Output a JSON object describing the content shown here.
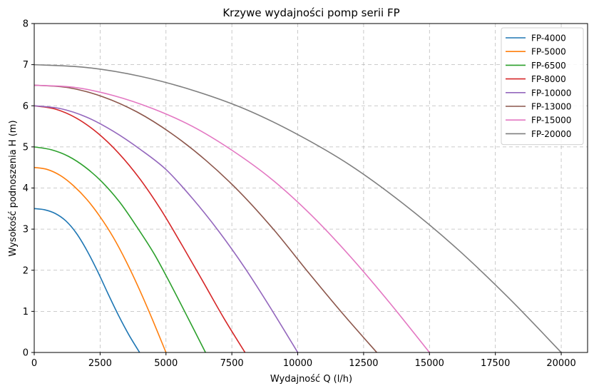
{
  "chart_data": {
    "type": "line",
    "title": "Krzywe wydajności pomp serii FP",
    "xlabel": "Wydajność Q (l/h)",
    "ylabel": "Wysokość podnoszenia H (m)",
    "xlim": [
      0,
      21000
    ],
    "ylim": [
      0,
      8
    ],
    "xticks": [
      0,
      2500,
      5000,
      7500,
      10000,
      12500,
      15000,
      17500,
      20000
    ],
    "yticks": [
      0,
      1,
      2,
      3,
      4,
      5,
      6,
      7,
      8
    ],
    "grid": true,
    "legend_position": "top-right",
    "series": [
      {
        "name": "FP-4000",
        "color": "#1f77b4",
        "x": [
          0,
          400,
          800,
          1200,
          1600,
          2000,
          2400,
          2800,
          3200,
          3600,
          4000
        ],
        "y": [
          3.5,
          3.47,
          3.38,
          3.2,
          2.9,
          2.48,
          1.98,
          1.43,
          0.9,
          0.42,
          0.0
        ]
      },
      {
        "name": "FP-5000",
        "color": "#ff7f0e",
        "x": [
          0,
          500,
          1000,
          1500,
          2000,
          2500,
          3000,
          3500,
          4000,
          4500,
          5000
        ],
        "y": [
          4.5,
          4.45,
          4.3,
          4.05,
          3.72,
          3.3,
          2.8,
          2.2,
          1.52,
          0.78,
          0.0
        ]
      },
      {
        "name": "FP-6500",
        "color": "#2ca02c",
        "x": [
          0,
          650,
          1300,
          1950,
          2600,
          3250,
          3900,
          4550,
          5200,
          5850,
          6500
        ],
        "y": [
          5.0,
          4.93,
          4.77,
          4.5,
          4.13,
          3.65,
          3.05,
          2.4,
          1.63,
          0.82,
          0.0
        ]
      },
      {
        "name": "FP-8000",
        "color": "#d62728",
        "x": [
          0,
          800,
          1600,
          2400,
          3200,
          4000,
          4800,
          5600,
          6400,
          7200,
          8000
        ],
        "y": [
          6.0,
          5.92,
          5.7,
          5.34,
          4.85,
          4.23,
          3.48,
          2.62,
          1.73,
          0.83,
          0.0
        ]
      },
      {
        "name": "FP-10000",
        "color": "#9467bd",
        "x": [
          0,
          1000,
          2000,
          3000,
          4000,
          5000,
          6000,
          7000,
          8000,
          9000,
          10000
        ],
        "y": [
          6.0,
          5.93,
          5.72,
          5.38,
          4.95,
          4.45,
          3.75,
          2.95,
          2.05,
          1.05,
          0.0
        ]
      },
      {
        "name": "FP-13000",
        "color": "#8c564b",
        "x": [
          0,
          1300,
          2600,
          3900,
          5200,
          6500,
          7800,
          9100,
          10400,
          11700,
          13000
        ],
        "y": [
          6.5,
          6.44,
          6.22,
          5.85,
          5.33,
          4.68,
          3.9,
          2.98,
          1.95,
          0.95,
          0.0
        ]
      },
      {
        "name": "FP-15000",
        "color": "#e377c2",
        "x": [
          0,
          1500,
          3000,
          4500,
          6000,
          7500,
          9000,
          10500,
          12000,
          13500,
          15000
        ],
        "y": [
          6.5,
          6.45,
          6.25,
          5.93,
          5.5,
          4.92,
          4.22,
          3.35,
          2.33,
          1.2,
          0.0
        ]
      },
      {
        "name": "FP-20000",
        "color": "#7f7f7f",
        "x": [
          0,
          2000,
          4000,
          6000,
          8000,
          10000,
          12000,
          14000,
          16000,
          18000,
          20000
        ],
        "y": [
          7.0,
          6.93,
          6.72,
          6.38,
          5.92,
          5.3,
          4.55,
          3.62,
          2.55,
          1.33,
          0.0
        ]
      }
    ]
  }
}
